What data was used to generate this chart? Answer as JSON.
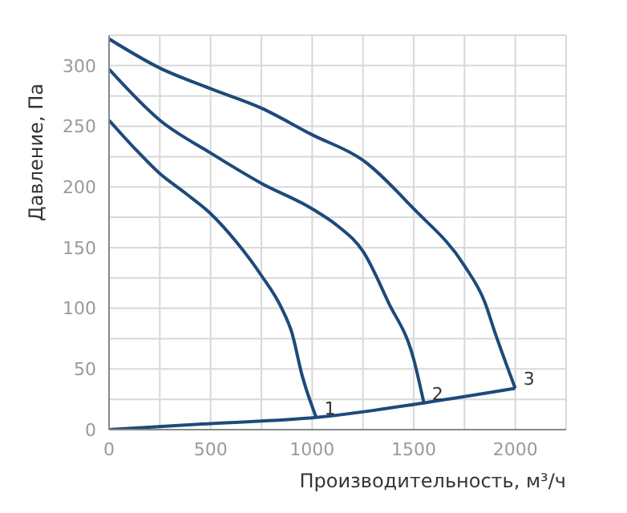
{
  "chart_data": {
    "type": "line",
    "xlabel": "Производительность, м³/ч",
    "ylabel": "Давление, Па",
    "xlim": [
      0,
      2250
    ],
    "ylim": [
      0,
      325
    ],
    "xticks": [
      0,
      {
        "value": 250,
        "label": null
      },
      500,
      {
        "value": 750,
        "label": null
      },
      1000,
      {
        "value": 1250,
        "label": null
      },
      1500,
      {
        "value": 1750,
        "label": null
      },
      2000,
      {
        "value": 2250,
        "label": null
      }
    ],
    "yticks": [
      0,
      {
        "value": 25,
        "label": null
      },
      50,
      {
        "value": 75,
        "label": null
      },
      100,
      {
        "value": 125,
        "label": null
      },
      150,
      {
        "value": 175,
        "label": null
      },
      200,
      {
        "value": 225,
        "label": null
      },
      250,
      {
        "value": 275,
        "label": null
      },
      300,
      {
        "value": 325,
        "label": null
      }
    ],
    "grid": true,
    "marker": "none",
    "line_style": "solid",
    "series": [
      {
        "color": "#1d4a7a",
        "x": [
          0,
          125,
          250,
          375,
          500,
          625,
          750,
          850,
          900,
          950,
          1020
        ],
        "values": [
          255,
          232,
          211,
          195,
          178,
          155,
          127,
          100,
          80,
          45,
          10
        ]
      },
      {
        "color": "#1d4a7a",
        "x": [
          0,
          250,
          500,
          750,
          1000,
          1125,
          1250,
          1375,
          1500,
          1550
        ],
        "values": [
          297,
          255,
          228,
          203,
          182,
          168,
          147,
          105,
          58,
          22
        ]
      },
      {
        "color": "#1d4a7a",
        "x": [
          0,
          250,
          500,
          750,
          1000,
          1250,
          1500,
          1750,
          1850,
          1900,
          2000
        ],
        "values": [
          322,
          298,
          281,
          265,
          243,
          222,
          182,
          135,
          105,
          80,
          34
        ]
      },
      {
        "color": "#1d4a7a",
        "x": [
          0,
          500,
          1020,
          1550,
          2000
        ],
        "values": [
          0,
          5,
          10,
          22,
          34
        ]
      }
    ],
    "annotations": [
      {
        "text": "1",
        "x": 1020,
        "y": 10
      },
      {
        "text": "2",
        "x": 1550,
        "y": 22
      },
      {
        "text": "3",
        "x": 2000,
        "y": 34
      }
    ]
  }
}
